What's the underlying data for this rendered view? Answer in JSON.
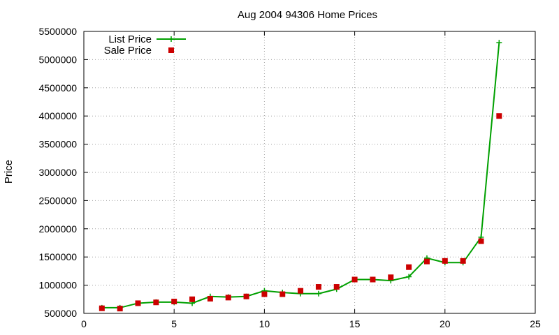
{
  "chart_data": {
    "type": "line",
    "title": "Aug 2004 94306 Home Prices",
    "xlabel": "",
    "ylabel": "Price",
    "xlim": [
      0,
      25
    ],
    "ylim": [
      500000,
      5500000
    ],
    "x_ticks": [
      0,
      5,
      10,
      15,
      20,
      25
    ],
    "y_ticks": [
      500000,
      1000000,
      1500000,
      2000000,
      2500000,
      3000000,
      3500000,
      4000000,
      4500000,
      5000000,
      5500000
    ],
    "x_tick_labels": [
      "0",
      "5",
      "10",
      "15",
      "20",
      "25"
    ],
    "y_tick_labels": [
      "500000",
      "1000000",
      "1500000",
      "2000000",
      "2500000",
      "3000000",
      "3500000",
      "4000000",
      "4500000",
      "5000000",
      "5500000"
    ],
    "grid": true,
    "legend_position": "top-left",
    "series": [
      {
        "name": "List Price",
        "style": "line-with-plus",
        "color": "#00a000",
        "x": [
          1,
          2,
          3,
          4,
          5,
          6,
          7,
          8,
          9,
          10,
          11,
          12,
          13,
          14,
          15,
          16,
          17,
          18,
          19,
          20,
          21,
          22,
          23
        ],
        "values": [
          600000,
          600000,
          680000,
          700000,
          700000,
          680000,
          800000,
          790000,
          800000,
          900000,
          870000,
          850000,
          850000,
          930000,
          1100000,
          1100000,
          1080000,
          1150000,
          1480000,
          1400000,
          1400000,
          1850000,
          5300000
        ]
      },
      {
        "name": "Sale Price",
        "style": "square-markers",
        "color": "#cc0000",
        "x": [
          1,
          2,
          3,
          4,
          5,
          6,
          7,
          8,
          9,
          10,
          11,
          12,
          13,
          14,
          15,
          16,
          17,
          18,
          19,
          20,
          21,
          22,
          23
        ],
        "values": [
          590000,
          585000,
          680000,
          695000,
          710000,
          750000,
          760000,
          780000,
          800000,
          840000,
          840000,
          900000,
          970000,
          970000,
          1100000,
          1100000,
          1140000,
          1320000,
          1420000,
          1430000,
          1430000,
          1780000,
          4000000
        ]
      }
    ]
  }
}
